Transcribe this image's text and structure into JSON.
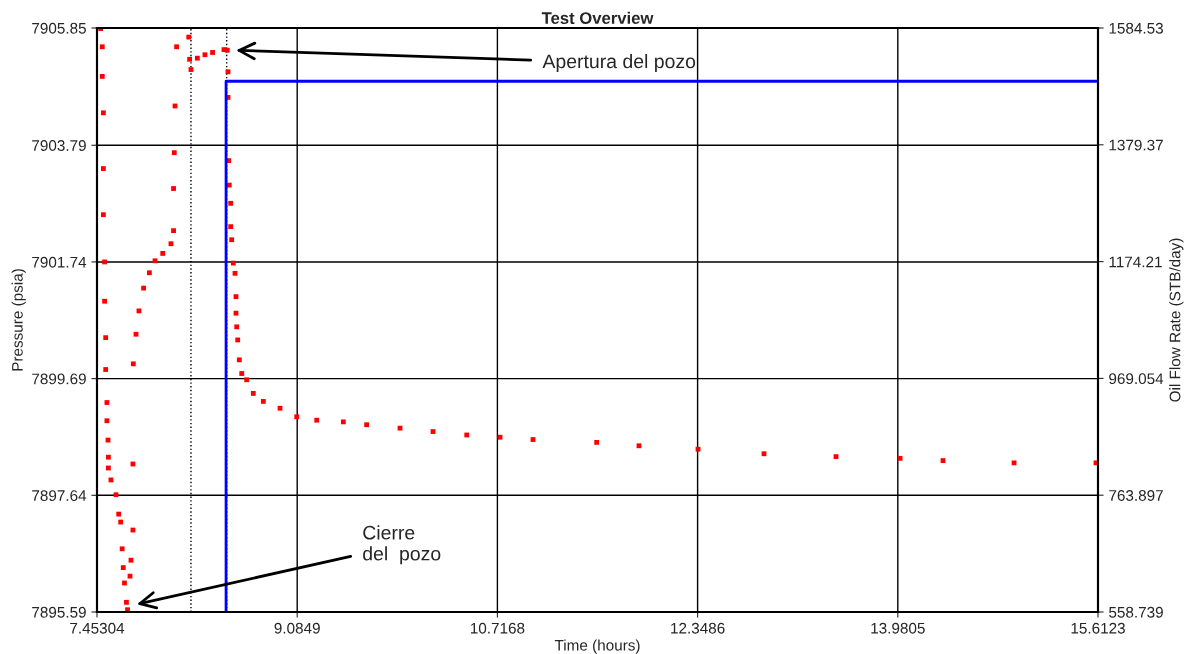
{
  "chart_data": {
    "type": "scatter",
    "title": "Test Overview",
    "xlabel": "Time (hours)",
    "ylabel": "Pressure (psia)",
    "y2label": "Oil Flow Rate (STB/day)",
    "xlim": [
      7.45304,
      15.6123
    ],
    "xticks": [
      7.45304,
      9.0849,
      10.7168,
      12.3486,
      13.9805,
      15.6123
    ],
    "ylim": [
      7895.59,
      7905.85
    ],
    "yticks": [
      7895.59,
      7897.64,
      7899.69,
      7901.74,
      7903.79,
      7905.85
    ],
    "y2lim": [
      558.739,
      1584.53
    ],
    "y2ticks": [
      558.739,
      763.897,
      969.054,
      1174.21,
      1379.37,
      1584.53
    ],
    "grid": true,
    "legend": false,
    "series": [
      {
        "color": "#ff0000",
        "marker": "square",
        "x": [
          7.483,
          7.496,
          7.496,
          7.505,
          7.505,
          7.505,
          7.515,
          7.515,
          7.524,
          7.524,
          7.534,
          7.534,
          7.543,
          7.546,
          7.546,
          7.567,
          7.608,
          7.63,
          7.646,
          7.658,
          7.667,
          7.677,
          7.693,
          7.702,
          7.722,
          7.73,
          7.746,
          7.746,
          7.749,
          7.771,
          7.795,
          7.833,
          7.88,
          7.926,
          7.989,
          8.056,
          8.077,
          8.077,
          8.083,
          8.089,
          8.102,
          8.201,
          8.208,
          8.219,
          8.271,
          8.333,
          8.395,
          8.488,
          8.515,
          8.521,
          8.521,
          8.527,
          8.531,
          8.543,
          8.543,
          8.551,
          8.564,
          8.578,
          8.586,
          8.586,
          8.592,
          8.6,
          8.613,
          8.633,
          8.673,
          8.727,
          8.809,
          8.945,
          9.081,
          9.244,
          9.461,
          9.651,
          9.923,
          10.192,
          10.467,
          10.738,
          11.007,
          11.526,
          11.871,
          12.352,
          12.89,
          13.477,
          13.999,
          14.349,
          14.928,
          15.596
        ],
        "values": [
          7905.84,
          7905.52,
          7905.0,
          7904.36,
          7903.38,
          7902.57,
          7901.74,
          7901.05,
          7900.41,
          7899.85,
          7899.27,
          7898.95,
          7898.61,
          7898.31,
          7898.12,
          7897.91,
          7897.65,
          7897.31,
          7897.17,
          7896.7,
          7896.37,
          7896.1,
          7895.76,
          7895.63,
          7896.22,
          7896.5,
          7897.03,
          7898.19,
          7899.95,
          7900.47,
          7900.88,
          7901.28,
          7901.55,
          7901.76,
          7901.89,
          7902.06,
          7902.29,
          7903.03,
          7903.66,
          7904.48,
          7905.52,
          7905.69,
          7905.3,
          7905.12,
          7905.32,
          7905.38,
          7905.42,
          7905.47,
          7905.46,
          7905.08,
          7904.63,
          7903.52,
          7903.09,
          7902.77,
          7902.36,
          7902.13,
          7901.72,
          7901.54,
          7901.13,
          7900.84,
          7900.6,
          7900.37,
          7900.02,
          7899.78,
          7899.67,
          7899.43,
          7899.29,
          7899.17,
          7899.02,
          7898.96,
          7898.93,
          7898.88,
          7898.82,
          7898.76,
          7898.7,
          7898.66,
          7898.62,
          7898.57,
          7898.51,
          7898.45,
          7898.37,
          7898.32,
          7898.29,
          7898.25,
          7898.21,
          7898.21
        ]
      },
      {
        "type": "line",
        "axis": "y2",
        "color": "#0000ff",
        "line_style": "solid",
        "x": [
          8.505,
          8.505,
          15.6123
        ],
        "values": [
          560,
          1491,
          1491
        ]
      }
    ],
    "ref_lines": [
      {
        "axis": "x",
        "value": 8.219,
        "color": "#000000",
        "line_style": "dotted"
      },
      {
        "axis": "x",
        "value": 8.51,
        "color": "#000000",
        "line_style": "dotted"
      }
    ],
    "annotations": [
      "Apertura del pozo",
      "Cierre\ndel  pozo"
    ]
  }
}
